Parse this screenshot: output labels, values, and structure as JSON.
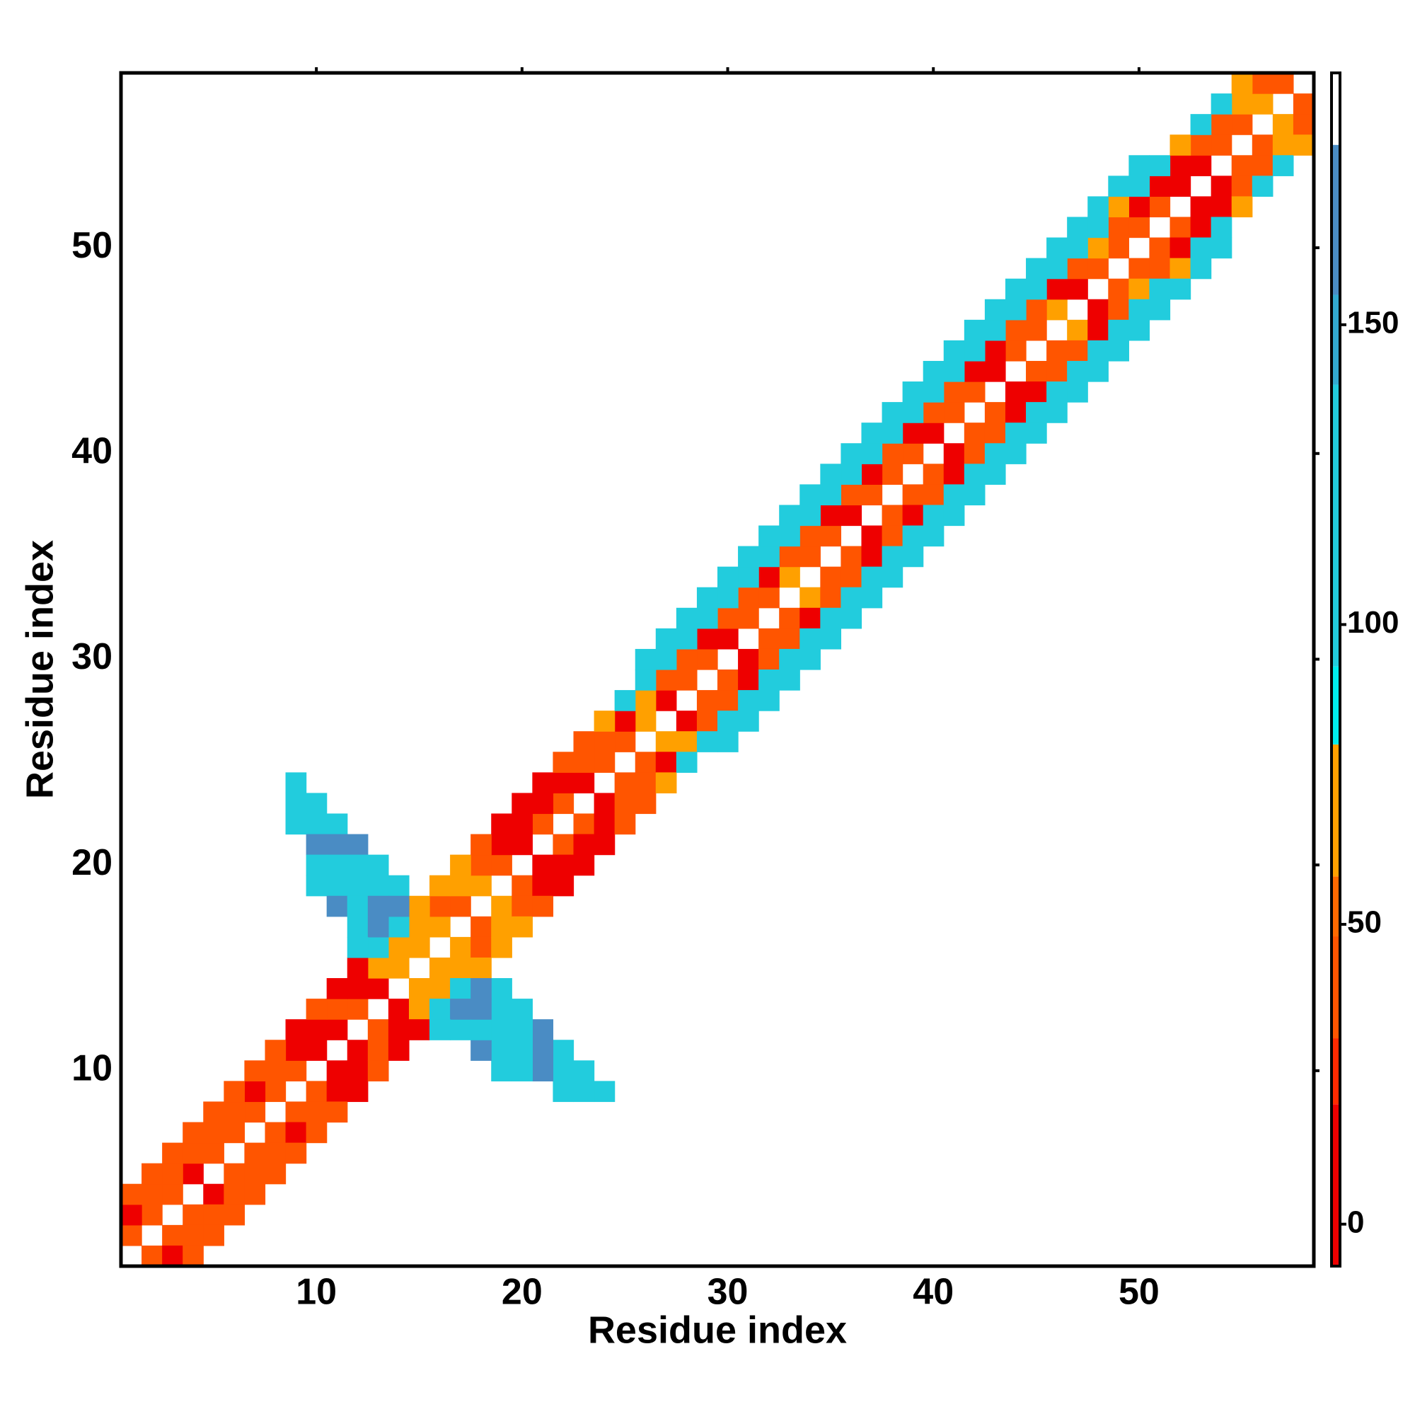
{
  "chart_data": {
    "type": "heatmap",
    "x_label": "Residue index",
    "y_label": "Residue index",
    "xlim": [
      0.5,
      58.5
    ],
    "ylim": [
      0.5,
      58.5
    ],
    "xticks": [
      10,
      20,
      30,
      40,
      50
    ],
    "yticks": [
      10,
      20,
      30,
      40,
      50
    ],
    "symmetric": true,
    "diagonals": [
      {
        "offset": 1,
        "start": 1,
        "values": [
          40,
          38,
          42,
          15,
          40,
          38,
          35,
          40,
          38,
          15,
          12,
          40,
          15,
          65,
          70,
          60,
          40,
          65,
          40,
          15,
          38,
          40,
          12,
          38,
          40,
          65,
          15,
          40,
          38,
          12,
          40,
          35,
          65,
          38,
          40,
          15,
          38,
          40,
          42,
          12,
          38,
          40,
          15,
          40,
          38,
          65,
          15,
          40,
          38,
          42,
          40,
          12,
          15,
          40,
          38,
          65,
          40
        ]
      },
      {
        "offset": 2,
        "start": 1,
        "values": [
          20,
          40,
          38,
          42,
          40,
          38,
          15,
          40,
          12,
          15,
          40,
          12,
          65,
          70,
          65,
          38,
          65,
          40,
          15,
          12,
          15,
          12,
          40,
          38,
          15,
          65,
          38,
          40,
          15,
          38,
          40,
          15,
          38,
          40,
          15,
          38,
          12,
          40,
          15,
          38,
          40,
          15,
          12,
          40,
          38,
          15,
          38,
          65,
          40,
          12,
          12,
          15,
          38,
          40,
          65,
          40
        ]
      },
      {
        "offset": 3,
        "start": 1,
        "values": [
          40,
          40,
          38,
          40,
          35,
          40,
          38,
          40,
          15,
          40,
          12,
          15,
          100,
          105,
          60,
          65,
          60,
          40,
          15,
          12,
          15,
          38,
          40,
          65,
          100,
          105,
          100,
          105,
          100,
          105,
          105,
          100,
          105,
          100,
          105,
          100,
          105,
          110,
          105,
          100,
          105,
          100,
          105,
          100,
          105,
          100,
          100,
          105,
          65,
          100,
          100,
          65,
          105,
          100,
          65
        ]
      },
      {
        "offset": 4,
        "start": 26,
        "values": [
          100,
          105,
          110,
          100,
          105,
          110,
          100,
          105,
          100,
          105,
          110,
          100,
          105,
          100,
          105,
          110,
          100,
          105,
          100,
          105,
          110,
          100,
          105,
          100,
          105
        ]
      }
    ],
    "cells": {
      "x": [
        9,
        9,
        10,
        9,
        10,
        11,
        10,
        11,
        12,
        10,
        11,
        12,
        13,
        10,
        11,
        12,
        13,
        14,
        11,
        12,
        13,
        14,
        12,
        13,
        12
      ],
      "y": [
        24,
        23,
        23,
        22,
        22,
        22,
        21,
        21,
        21,
        20,
        20,
        20,
        20,
        19,
        19,
        19,
        19,
        19,
        18,
        18,
        18,
        18,
        17,
        17,
        16
      ],
      "values": [
        125,
        120,
        125,
        120,
        125,
        135,
        160,
        160,
        160,
        110,
        130,
        110,
        110,
        110,
        125,
        110,
        110,
        140,
        160,
        140,
        160,
        160,
        135,
        160,
        110
      ]
    },
    "colorbar": {
      "lim": [
        -7,
        192
      ],
      "ticks": [
        0,
        50,
        100,
        150
      ],
      "bands": [
        {
          "from": -7,
          "to": 20,
          "color": "#ee0000"
        },
        {
          "from": 20,
          "to": 31,
          "color": "#ff2a00"
        },
        {
          "from": 31,
          "to": 48,
          "color": "#ff5500"
        },
        {
          "from": 48,
          "to": 58,
          "color": "#ff6a00"
        },
        {
          "from": 58,
          "to": 80,
          "color": "#ffa000"
        },
        {
          "from": 80,
          "to": 93,
          "color": "#00eeee"
        },
        {
          "from": 93,
          "to": 140,
          "color": "#22ccdd"
        },
        {
          "from": 140,
          "to": 155,
          "color": "#33aad0"
        },
        {
          "from": 155,
          "to": 180,
          "color": "#4a8cc4"
        },
        {
          "from": 180,
          "to": 192,
          "color": "#ffffff"
        }
      ]
    }
  }
}
